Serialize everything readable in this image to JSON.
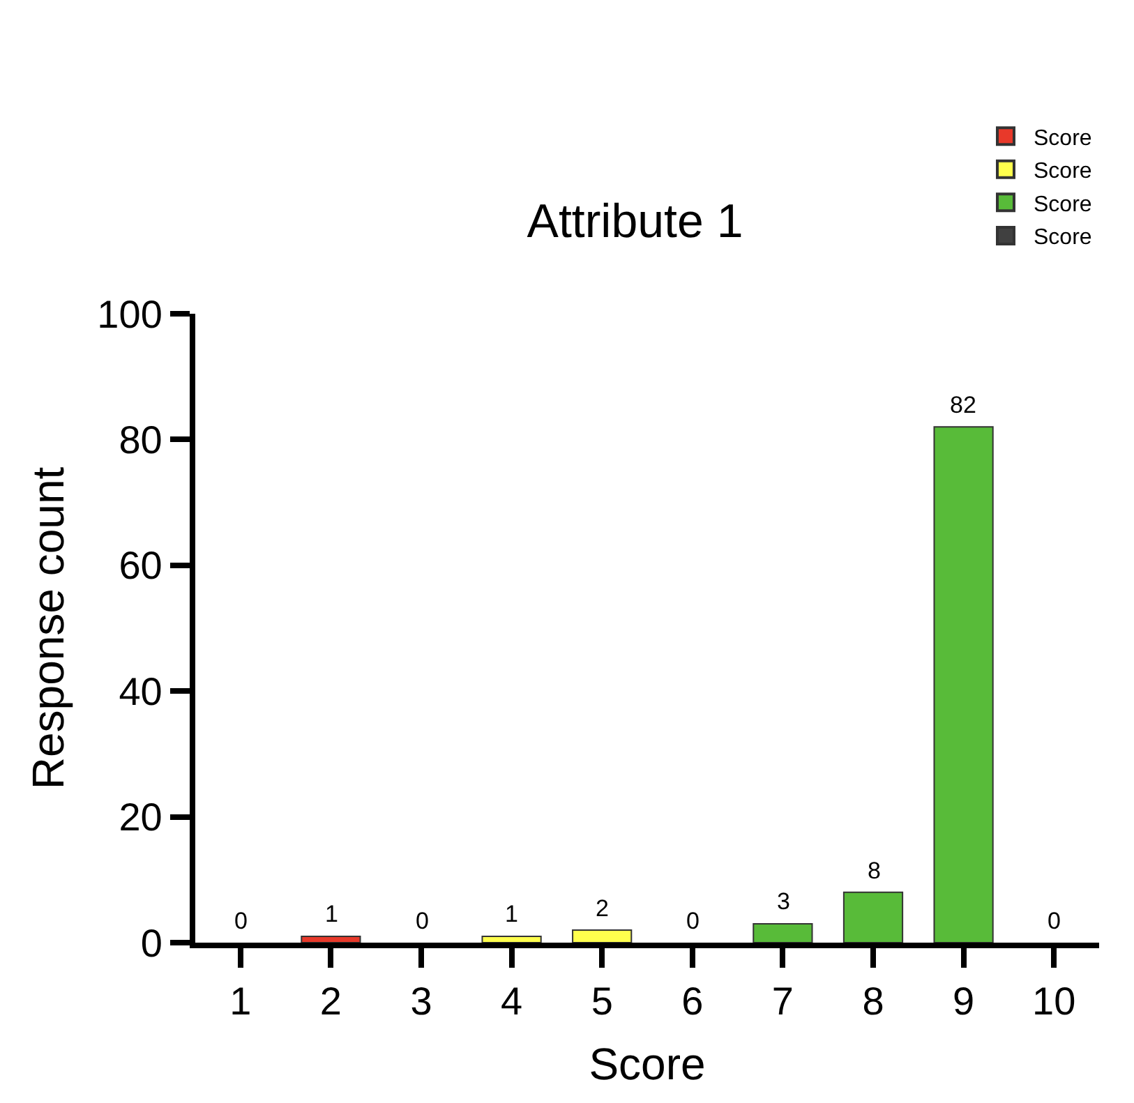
{
  "chart_data": {
    "type": "bar",
    "title": "Attribute 1",
    "xlabel": "Score",
    "ylabel": "Response count",
    "categories": [
      "1",
      "2",
      "3",
      "4",
      "5",
      "6",
      "7",
      "8",
      "9",
      "10"
    ],
    "series": [
      {
        "name": "Score",
        "color": "#e8392a",
        "values": [
          0,
          1,
          0,
          null,
          null,
          null,
          null,
          null,
          null,
          null
        ]
      },
      {
        "name": "Score",
        "color": "#ffff4d",
        "values": [
          null,
          null,
          null,
          1,
          2,
          0,
          null,
          null,
          null,
          null
        ]
      },
      {
        "name": "Score",
        "color": "#58bb39",
        "values": [
          null,
          null,
          null,
          null,
          null,
          null,
          3,
          8,
          82,
          null
        ]
      },
      {
        "name": "Score",
        "color": "#404040",
        "values": [
          null,
          null,
          null,
          null,
          null,
          null,
          null,
          null,
          null,
          0
        ]
      }
    ],
    "ylim": [
      0,
      100
    ],
    "yticks": [
      0,
      20,
      40,
      60,
      80,
      100
    ],
    "legend": "top right",
    "data_labels": true
  }
}
